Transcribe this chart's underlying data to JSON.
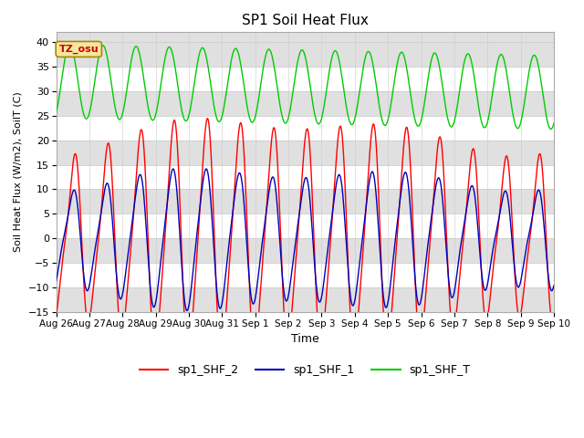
{
  "title": "SP1 Soil Heat Flux",
  "ylabel": "Soil Heat Flux (W/m2), SoilT (C)",
  "xlabel": "Time",
  "ylim": [
    -15,
    42
  ],
  "yticks": [
    -15,
    -10,
    -5,
    0,
    5,
    10,
    15,
    20,
    25,
    30,
    35,
    40
  ],
  "line_colors": {
    "SHF_2": "#ff0000",
    "SHF_1": "#0000bb",
    "SHF_T": "#00cc00"
  },
  "legend_labels": [
    "sp1_SHF_2",
    "sp1_SHF_1",
    "sp1_SHF_T"
  ],
  "tz_label": "TZ_osu",
  "n_points": 5000,
  "x_tick_labels": [
    "Aug 26",
    "Aug 27",
    "Aug 28",
    "Aug 29",
    "Aug 30",
    "Aug 31",
    "Sep 1",
    "Sep 2",
    "Sep 3",
    "Sep 4",
    "Sep 5",
    "Sep 6",
    "Sep 7",
    "Sep 8",
    "Sep 9",
    "Sep 10"
  ],
  "bg_color": "#e0e0e0",
  "stripe_color": "#f0f0f0"
}
